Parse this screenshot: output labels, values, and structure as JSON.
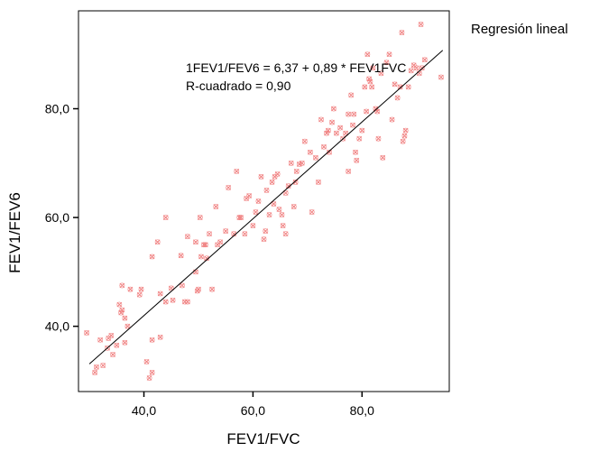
{
  "chart_data": {
    "type": "scatter",
    "xlabel": "FEV1/FVC",
    "ylabel": "FEV1/FEV6",
    "xlim": [
      28.0,
      96.0
    ],
    "ylim": [
      28.0,
      98.0
    ],
    "x_ticks": [
      40,
      60,
      80
    ],
    "y_ticks": [
      40,
      60,
      80
    ],
    "x_tick_labels": [
      "40,0",
      "60,0",
      "80,0"
    ],
    "y_tick_labels": [
      "40,0",
      "60,0",
      "80,0"
    ],
    "grid": false,
    "legend_text": "Regresión lineal",
    "legend_position": "top-right outside plot",
    "equation": "1FEV1/FEV6 = 6,37 + 0,89 * FEV1FVC",
    "r_squared": "R-cuadrado = 0,90",
    "regression": {
      "intercept": 6.37,
      "slope": 0.89,
      "x_range": [
        30.0,
        94.8
      ]
    },
    "marker_color": "#f08080",
    "line_color": "#000000",
    "series": [
      {
        "points": [
          [
            29.5,
            38.8
          ],
          [
            31.0,
            31.5
          ],
          [
            31.3,
            32.5
          ],
          [
            32.0,
            37.5
          ],
          [
            32.5,
            32.8
          ],
          [
            33.3,
            36.0
          ],
          [
            33.5,
            37.8
          ],
          [
            34.0,
            38.3
          ],
          [
            34.3,
            34.8
          ],
          [
            35.0,
            36.5
          ],
          [
            35.5,
            44.0
          ],
          [
            35.8,
            42.5
          ],
          [
            36.0,
            43.0
          ],
          [
            36.0,
            47.5
          ],
          [
            36.5,
            37.0
          ],
          [
            36.5,
            41.5
          ],
          [
            37.0,
            40.0
          ],
          [
            37.5,
            46.8
          ],
          [
            39.2,
            45.8
          ],
          [
            39.5,
            46.8
          ],
          [
            40.5,
            33.5
          ],
          [
            41.0,
            30.5
          ],
          [
            41.5,
            31.5
          ],
          [
            41.5,
            37.5
          ],
          [
            41.5,
            52.8
          ],
          [
            42.5,
            55.5
          ],
          [
            43.0,
            38.0
          ],
          [
            43.0,
            46.0
          ],
          [
            44.0,
            60.0
          ],
          [
            44.0,
            44.5
          ],
          [
            45.0,
            47.0
          ],
          [
            45.3,
            44.8
          ],
          [
            46.8,
            53.0
          ],
          [
            47.0,
            47.5
          ],
          [
            47.5,
            44.5
          ],
          [
            48.0,
            44.5
          ],
          [
            48.0,
            56.5
          ],
          [
            49.5,
            50.0
          ],
          [
            49.5,
            55.5
          ],
          [
            49.8,
            46.5
          ],
          [
            50.0,
            46.8
          ],
          [
            50.3,
            60.0
          ],
          [
            50.5,
            52.8
          ],
          [
            51.0,
            55.0
          ],
          [
            51.3,
            55.0
          ],
          [
            51.5,
            52.5
          ],
          [
            52.0,
            57.0
          ],
          [
            52.5,
            46.8
          ],
          [
            53.2,
            62.0
          ],
          [
            53.5,
            55.0
          ],
          [
            54.0,
            55.5
          ],
          [
            55.0,
            57.5
          ],
          [
            55.5,
            65.5
          ],
          [
            56.5,
            57.0
          ],
          [
            57.5,
            60.0
          ],
          [
            57.8,
            60.0
          ],
          [
            57.0,
            68.5
          ],
          [
            58.5,
            57.0
          ],
          [
            58.8,
            63.5
          ],
          [
            59.3,
            64.0
          ],
          [
            60.0,
            58.5
          ],
          [
            60.5,
            61.0
          ],
          [
            61.0,
            63.0
          ],
          [
            61.5,
            67.5
          ],
          [
            62.0,
            56.0
          ],
          [
            62.3,
            57.5
          ],
          [
            62.5,
            65.0
          ],
          [
            63.0,
            60.5
          ],
          [
            63.5,
            66.5
          ],
          [
            63.8,
            62.5
          ],
          [
            64.0,
            67.5
          ],
          [
            64.5,
            68.0
          ],
          [
            64.8,
            61.5
          ],
          [
            65.3,
            60.5
          ],
          [
            65.5,
            58.5
          ],
          [
            66.0,
            57.0
          ],
          [
            66.0,
            64.5
          ],
          [
            66.5,
            65.8
          ],
          [
            67.0,
            70.0
          ],
          [
            67.5,
            62.0
          ],
          [
            67.8,
            66.5
          ],
          [
            68.0,
            68.5
          ],
          [
            68.5,
            69.8
          ],
          [
            69.0,
            70.0
          ],
          [
            69.5,
            74.0
          ],
          [
            70.5,
            72.0
          ],
          [
            70.8,
            61.0
          ],
          [
            71.5,
            71.0
          ],
          [
            72.0,
            66.5
          ],
          [
            72.5,
            78.0
          ],
          [
            73.0,
            73.0
          ],
          [
            73.5,
            75.5
          ],
          [
            73.8,
            76.0
          ],
          [
            74.0,
            72.0
          ],
          [
            74.5,
            77.5
          ],
          [
            74.8,
            80.0
          ],
          [
            75.3,
            75.5
          ],
          [
            76.0,
            76.5
          ],
          [
            76.5,
            74.5
          ],
          [
            77.0,
            75.5
          ],
          [
            77.5,
            79.0
          ],
          [
            77.5,
            68.5
          ],
          [
            78.0,
            82.5
          ],
          [
            78.3,
            77.0
          ],
          [
            78.5,
            79.0
          ],
          [
            78.8,
            72.0
          ],
          [
            79.0,
            70.5
          ],
          [
            79.5,
            74.5
          ],
          [
            80.0,
            76.0
          ],
          [
            80.5,
            84.0
          ],
          [
            80.8,
            79.5
          ],
          [
            81.0,
            90.0
          ],
          [
            81.3,
            85.5
          ],
          [
            81.5,
            85.0
          ],
          [
            81.8,
            84.0
          ],
          [
            82.0,
            87.5
          ],
          [
            82.5,
            80.0
          ],
          [
            82.8,
            79.5
          ],
          [
            83.0,
            74.5
          ],
          [
            83.5,
            86.5
          ],
          [
            83.8,
            71.0
          ],
          [
            84.5,
            88.5
          ],
          [
            85.0,
            90.0
          ],
          [
            85.5,
            78.0
          ],
          [
            86.0,
            84.5
          ],
          [
            86.5,
            82.0
          ],
          [
            87.0,
            84.0
          ],
          [
            87.3,
            94.0
          ],
          [
            87.5,
            74.0
          ],
          [
            87.8,
            75.0
          ],
          [
            88.0,
            76.0
          ],
          [
            88.5,
            84.0
          ],
          [
            89.0,
            87.0
          ],
          [
            89.5,
            88.0
          ],
          [
            90.0,
            87.5
          ],
          [
            90.5,
            86.5
          ],
          [
            91.0,
            87.5
          ],
          [
            94.5,
            85.8
          ],
          [
            90.8,
            95.5
          ],
          [
            91.5,
            89.0
          ]
        ]
      }
    ]
  }
}
